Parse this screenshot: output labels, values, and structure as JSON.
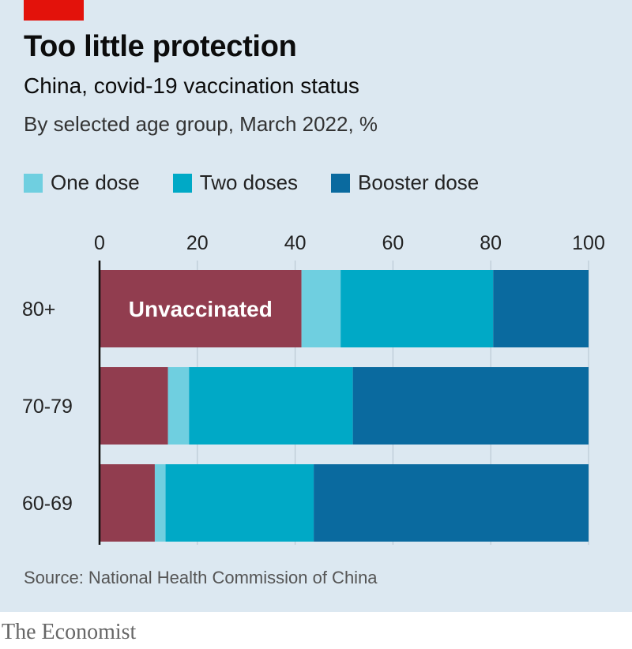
{
  "title": "Too little protection",
  "subtitle": "China, covid-19 vaccination status",
  "subsubtitle": "By selected age group, March 2022, %",
  "source": "Source: National Health Commission of China",
  "brand": "The Economist",
  "colors": {
    "panel_bg": "#dce8f1",
    "brand_red": "#e3120b",
    "unvaccinated": "#913d4f",
    "one_dose": "#6fcfe0",
    "two_doses": "#00a9c6",
    "booster": "#0a6a9f"
  },
  "legend": [
    {
      "label": "One dose",
      "color": "#6fcfe0"
    },
    {
      "label": "Two doses",
      "color": "#00a9c6"
    },
    {
      "label": "Booster dose",
      "color": "#0a6a9f"
    }
  ],
  "chart_data": {
    "type": "bar",
    "orientation": "horizontal",
    "stacked": true,
    "categories": [
      "80+",
      "70-79",
      "60-69"
    ],
    "x_ticks": [
      "0",
      "20",
      "40",
      "60",
      "80",
      "100"
    ],
    "xlim": [
      0,
      100
    ],
    "grid": true,
    "series": [
      {
        "name": "Unvaccinated",
        "color": "#913d4f",
        "values": [
          41.3,
          14.0,
          11.3
        ]
      },
      {
        "name": "One dose",
        "color": "#6fcfe0",
        "values": [
          8.0,
          4.3,
          2.2
        ]
      },
      {
        "name": "Two doses",
        "color": "#00a9c6",
        "values": [
          31.2,
          33.5,
          30.3
        ]
      },
      {
        "name": "Booster dose",
        "color": "#0a6a9f",
        "values": [
          19.5,
          48.2,
          56.2
        ]
      }
    ],
    "annotation": "Unvaccinated"
  }
}
